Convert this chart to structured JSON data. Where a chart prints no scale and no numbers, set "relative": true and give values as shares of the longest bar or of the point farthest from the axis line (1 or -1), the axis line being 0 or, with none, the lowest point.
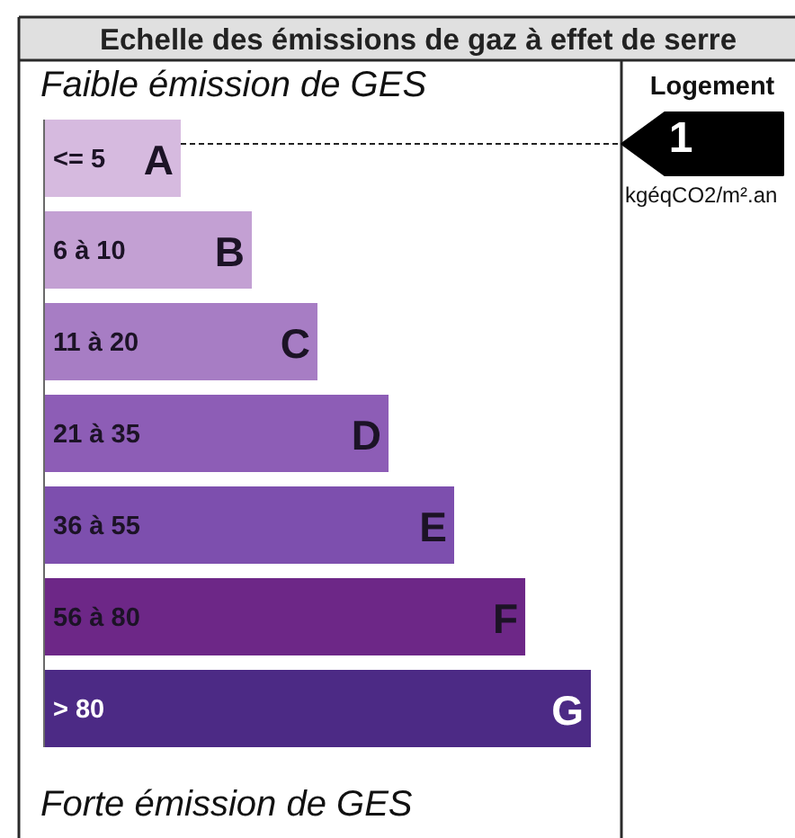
{
  "chart_data": {
    "type": "bar",
    "orientation": "horizontal",
    "relative": true,
    "title": "Echelle des émissions de gaz à effet de serre",
    "categories": [
      "<= 5",
      "6 à 10",
      "11 à 20",
      "21 à 35",
      "36 à 55",
      "56 à 80",
      "> 80"
    ],
    "values": [
      0.25,
      0.38,
      0.5,
      0.63,
      0.75,
      0.88,
      1
    ],
    "colors": [
      "#d6badf",
      "#c3a0d3",
      "#a77dc4",
      "#8d5db6",
      "#7d4fae",
      "#6d2787",
      "#4c2a85"
    ],
    "ref_lines": [
      {
        "axis": "y",
        "value": "<= 5",
        "label": "1",
        "color": "#222222",
        "line_style": "dashed"
      }
    ],
    "annotations": [
      "Faible émission de GES",
      "Forte émission de GES",
      "Logement",
      "kgéqCO2/m².an",
      {
        "text": "A",
        "x": 0.25,
        "y": "<= 5"
      },
      {
        "text": "B",
        "x": 0.38,
        "y": "6 à 10"
      },
      {
        "text": "C",
        "x": 0.5,
        "y": "11 à 20"
      },
      {
        "text": "D",
        "x": 0.63,
        "y": "21 à 35"
      },
      {
        "text": "E",
        "x": 0.75,
        "y": "36 à 55"
      },
      {
        "text": "F",
        "x": 0.88,
        "y": "56 à 80"
      },
      {
        "text": "G",
        "x": 1,
        "y": "> 80"
      }
    ]
  }
}
